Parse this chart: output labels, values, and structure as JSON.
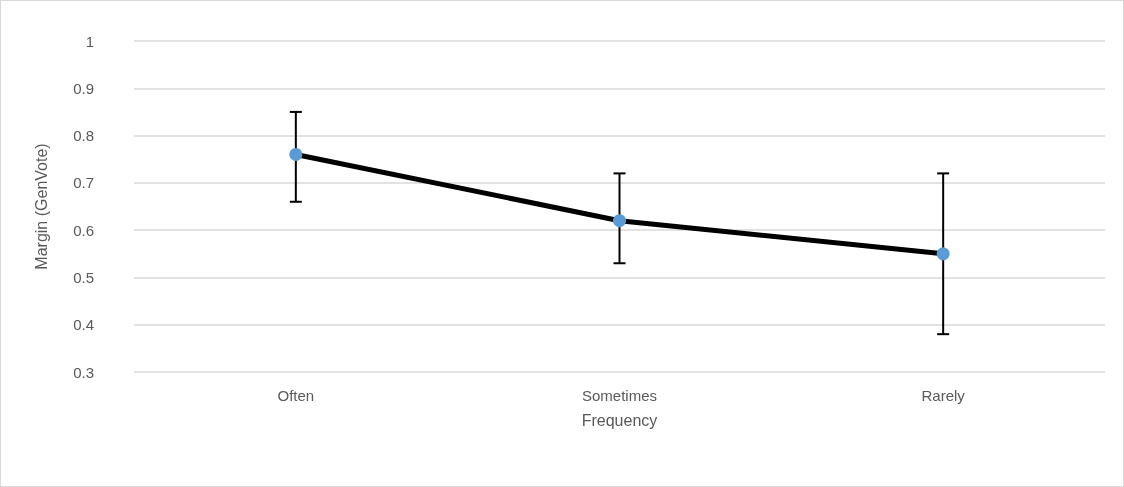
{
  "chart_data": {
    "type": "line",
    "xlabel": "Frequency",
    "ylabel": "Margin (GenVote)",
    "categories": [
      "Often",
      "Sometimes",
      "Rarely"
    ],
    "series": [
      {
        "color": "#000000",
        "colors": [
          "#5b9bd5",
          "#5b9bd5",
          "#5b9bd5"
        ],
        "values": [
          0.76,
          0.62,
          0.55
        ],
        "errors": [
          [
            0.66,
            0.85
          ],
          [
            0.53,
            0.72
          ],
          [
            0.38,
            0.72
          ]
        ]
      }
    ],
    "ylim": [
      0.3,
      1
    ],
    "yticks": [
      0.3,
      0.4,
      0.5,
      0.6,
      0.7,
      0.8,
      0.9,
      1
    ],
    "grid": "y",
    "marker": "circle",
    "line_style": "solid"
  }
}
